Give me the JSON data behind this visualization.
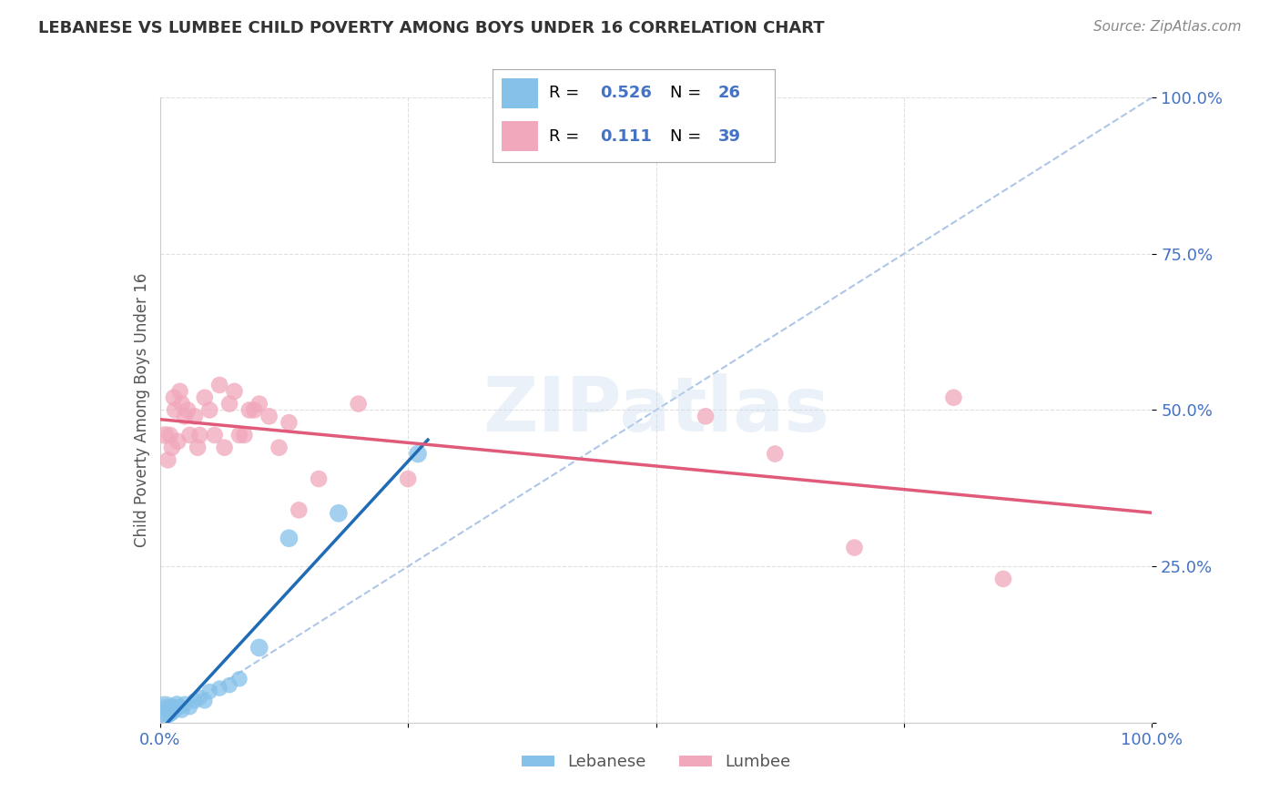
{
  "title": "LEBANESE VS LUMBEE CHILD POVERTY AMONG BOYS UNDER 16 CORRELATION CHART",
  "source": "Source: ZipAtlas.com",
  "ylabel": "Child Poverty Among Boys Under 16",
  "watermark": "ZIPatlas",
  "legend_labels": [
    "Lebanese",
    "Lumbee"
  ],
  "R_lebanese": "0.526",
  "N_lebanese": "26",
  "R_lumbee": "0.111",
  "N_lumbee": "39",
  "lebanese_color": "#85c1e9",
  "lumbee_color": "#f1a7bc",
  "lebanese_line_color": "#1f6bb5",
  "lumbee_line_color": "#e05a7a",
  "diagonal_color": "#aec6e8",
  "xlim": [
    0,
    1
  ],
  "ylim": [
    0,
    1
  ],
  "xticks": [
    0,
    0.25,
    0.5,
    0.75,
    1.0
  ],
  "yticks": [
    0,
    0.25,
    0.5,
    0.75,
    1.0
  ],
  "xticklabels": [
    "0.0%",
    "",
    "",
    "",
    "100.0%"
  ],
  "yticklabels": [
    "",
    "25.0%",
    "50.0%",
    "75.0%",
    "100.0%"
  ],
  "lebanese_x": [
    0.005,
    0.007,
    0.008,
    0.009,
    0.01,
    0.011,
    0.012,
    0.013,
    0.014,
    0.015,
    0.017,
    0.02,
    0.022,
    0.025,
    0.03,
    0.035,
    0.04,
    0.045,
    0.05,
    0.06,
    0.07,
    0.08,
    0.1,
    0.13,
    0.18,
    0.26
  ],
  "lebanese_y": [
    0.02,
    0.025,
    0.015,
    0.022,
    0.018,
    0.02,
    0.015,
    0.018,
    0.025,
    0.02,
    0.03,
    0.025,
    0.02,
    0.03,
    0.025,
    0.035,
    0.04,
    0.035,
    0.05,
    0.055,
    0.06,
    0.07,
    0.12,
    0.295,
    0.335,
    0.43
  ],
  "lebanese_sizes": [
    500,
    180,
    200,
    160,
    200,
    180,
    150,
    160,
    180,
    160,
    170,
    160,
    160,
    160,
    160,
    160,
    160,
    160,
    160,
    160,
    160,
    160,
    200,
    200,
    200,
    200
  ],
  "lumbee_x": [
    0.005,
    0.008,
    0.01,
    0.012,
    0.014,
    0.015,
    0.018,
    0.02,
    0.022,
    0.025,
    0.028,
    0.03,
    0.035,
    0.038,
    0.04,
    0.045,
    0.05,
    0.055,
    0.06,
    0.065,
    0.07,
    0.075,
    0.08,
    0.085,
    0.09,
    0.095,
    0.1,
    0.11,
    0.12,
    0.13,
    0.14,
    0.16,
    0.2,
    0.25,
    0.55,
    0.62,
    0.7,
    0.8,
    0.85
  ],
  "lumbee_y": [
    0.46,
    0.42,
    0.46,
    0.44,
    0.52,
    0.5,
    0.45,
    0.53,
    0.51,
    0.49,
    0.5,
    0.46,
    0.49,
    0.44,
    0.46,
    0.52,
    0.5,
    0.46,
    0.54,
    0.44,
    0.51,
    0.53,
    0.46,
    0.46,
    0.5,
    0.5,
    0.51,
    0.49,
    0.44,
    0.48,
    0.34,
    0.39,
    0.51,
    0.39,
    0.49,
    0.43,
    0.28,
    0.52,
    0.23
  ],
  "lumbee_sizes": [
    200,
    180,
    180,
    180,
    180,
    180,
    180,
    180,
    180,
    180,
    180,
    180,
    180,
    180,
    180,
    180,
    180,
    180,
    180,
    180,
    180,
    180,
    180,
    180,
    180,
    180,
    180,
    180,
    180,
    180,
    180,
    180,
    180,
    180,
    180,
    180,
    180,
    180,
    180
  ],
  "background_color": "#ffffff",
  "grid_color": "#e0e0e0",
  "title_color": "#333333",
  "axis_label_color": "#555555",
  "tick_color": "#4472c4",
  "legend_value_color": "#4472c4"
}
